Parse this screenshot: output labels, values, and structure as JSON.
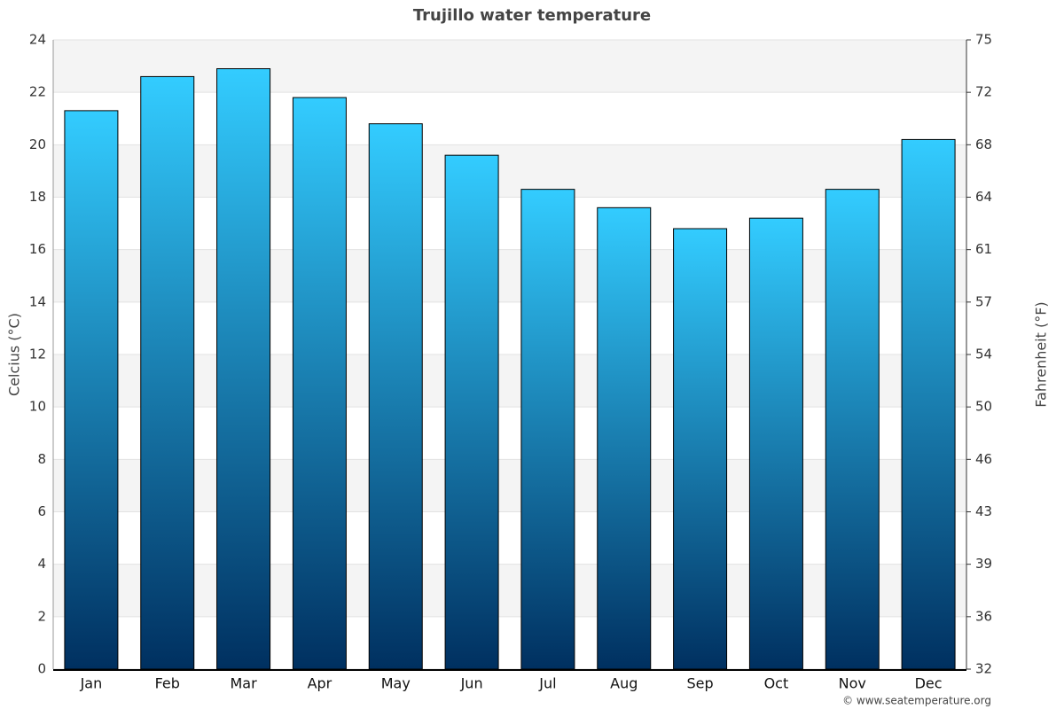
{
  "chart_data": {
    "type": "bar",
    "title": "Trujillo water temperature",
    "ylabel": "Celcius (°C)",
    "y2label": "Fahrenheit (°F)",
    "credit": "© www.seatemperature.org",
    "categories": [
      "Jan",
      "Feb",
      "Mar",
      "Apr",
      "May",
      "Jun",
      "Jul",
      "Aug",
      "Sep",
      "Oct",
      "Nov",
      "Dec"
    ],
    "values": [
      21.3,
      22.6,
      22.9,
      21.8,
      20.8,
      19.6,
      18.3,
      17.6,
      16.8,
      17.2,
      18.3,
      20.2
    ],
    "gradient": [
      "#33ccff",
      "#003060"
    ],
    "ylim": [
      0,
      24
    ],
    "yticks": [
      0,
      2,
      4,
      6,
      8,
      10,
      12,
      14,
      16,
      18,
      20,
      22,
      24
    ],
    "y2lim": [
      32,
      75.2
    ],
    "y2ticks": [
      32,
      {
        "value": 35.6,
        "label": "36"
      },
      {
        "value": 39.2,
        "label": "39"
      },
      {
        "value": 42.8,
        "label": "43"
      },
      {
        "value": 46.4,
        "label": "46"
      },
      50,
      {
        "value": 53.6,
        "label": "54"
      },
      {
        "value": 57.2,
        "label": "57"
      },
      {
        "value": 60.8,
        "label": "61"
      },
      {
        "value": 64.4,
        "label": "64"
      },
      68,
      {
        "value": 71.6,
        "label": "72"
      },
      {
        "value": 75.2,
        "label": "75"
      }
    ],
    "grid": true
  }
}
